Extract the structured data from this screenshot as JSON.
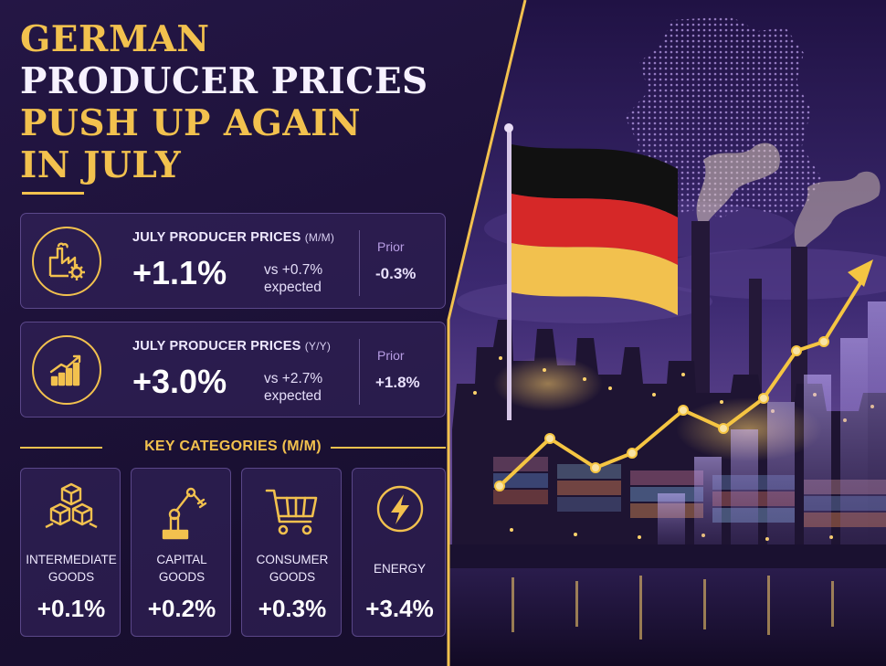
{
  "headline": {
    "line1": "GERMAN",
    "line2": "PRODUCER PRICES",
    "line3": "PUSH UP AGAIN",
    "line4": "IN JULY"
  },
  "cards": [
    {
      "label": "JULY PRODUCER PRICES",
      "label_sub": "(M/M)",
      "value": "+1.1%",
      "expected_line1": "vs +0.7%",
      "expected_line2": "expected",
      "prior_label": "Prior",
      "prior_value": "-0.3%",
      "icon": "factory-gear-icon"
    },
    {
      "label": "JULY PRODUCER PRICES",
      "label_sub": "(Y/Y)",
      "value": "+3.0%",
      "expected_line1": "vs +2.7%",
      "expected_line2": "expected",
      "prior_label": "Prior",
      "prior_value": "+1.8%",
      "icon": "rising-bar-chart-icon"
    }
  ],
  "categories": {
    "title": "KEY CATEGORIES (M/M)",
    "items": [
      {
        "name_line1": "INTERMEDIATE",
        "name_line2": "GOODS",
        "value": "+0.1%",
        "icon": "stacked-boxes-icon"
      },
      {
        "name_line1": "CAPITAL",
        "name_line2": "GOODS",
        "value": "+0.2%",
        "icon": "robot-arm-icon"
      },
      {
        "name_line1": "CONSUMER",
        "name_line2": "GOODS",
        "value": "+0.3%",
        "icon": "shopping-cart-icon"
      },
      {
        "name_line1": "ENERGY",
        "name_line2": "",
        "value": "+3.4%",
        "icon": "lightning-bolt-icon"
      }
    ]
  },
  "colors": {
    "accent": "#f2c14e",
    "background": "#1c1238",
    "card": "#34245c",
    "flag_black": "#111111",
    "flag_red": "#d62828",
    "flag_gold": "#f2c14e"
  }
}
